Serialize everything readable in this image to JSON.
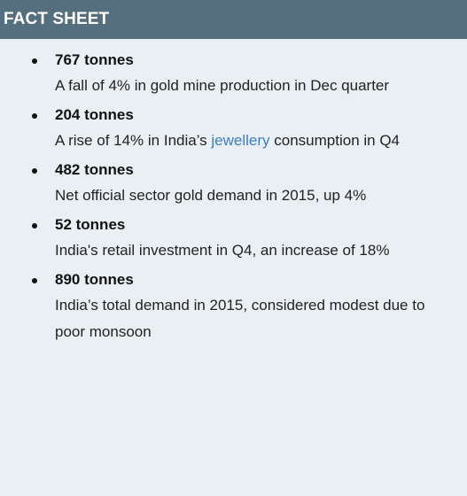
{
  "header": {
    "title": "FACT SHEET"
  },
  "facts": [
    {
      "figure": "767 tonnes",
      "description": "A fall of 4% in gold mine production in Dec quarter"
    },
    {
      "figure": "204 tonnes",
      "description_before": "A rise of 14% in India’s ",
      "description_link": "jewellery",
      "description_after": " consumption in Q4"
    },
    {
      "figure": "482 tonnes",
      "description": "Net official sector gold demand in 2015, up 4%"
    },
    {
      "figure": "52 tonnes",
      "description": "India's retail investment in Q4, an increase of 18%"
    },
    {
      "figure": "890 tonnes",
      "description": "India’s total demand in 2015, considered modest due to poor monsoon"
    }
  ],
  "colors": {
    "header_bg": "#566f7e",
    "panel_bg": "#e9eff3",
    "link": "#3b7fc4"
  }
}
